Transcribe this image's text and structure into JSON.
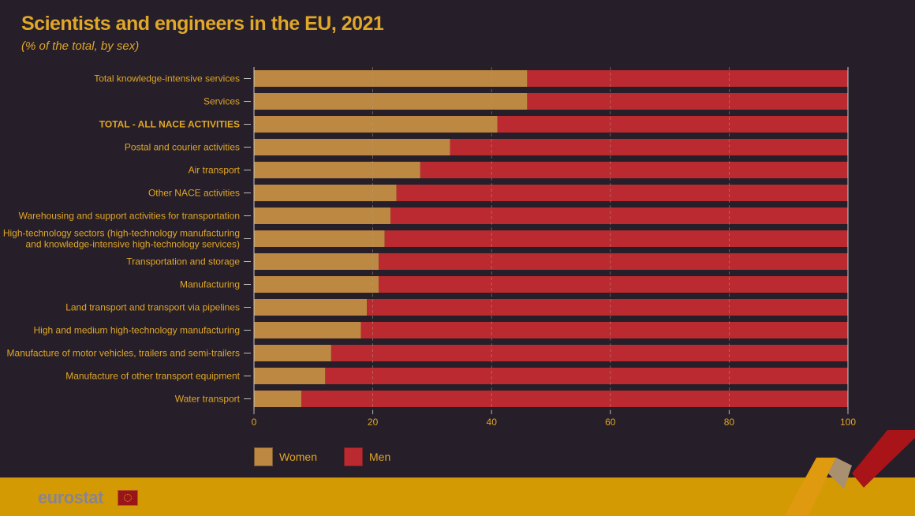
{
  "header": {
    "title": "Scientists and engineers in the EU, 2021",
    "subtitle": "(% of the total, by sex)"
  },
  "colors": {
    "women": "#bd8841",
    "men": "#bb2a30",
    "text": "#e0a728",
    "background": "#261e28",
    "footer": "#d39a04"
  },
  "footer": {
    "logo": "eurostat"
  },
  "chart_data": {
    "type": "bar",
    "orientation": "horizontal",
    "stacked": true,
    "title": "Scientists and engineers in the EU, 2021",
    "subtitle": "(% of the total, by sex)",
    "categories": [
      "Total knowledge-intensive services",
      "Services",
      "TOTAL - ALL NACE ACTIVITIES",
      "Postal and courier activities",
      "Air transport",
      "Other NACE activities",
      "Warehousing and support activities for transportation",
      "High-technology sectors (high-technology manufacturing|and knowledge-intensive high-technology services)",
      "Transportation and storage",
      "Manufacturing",
      "Land transport and transport via pipelines",
      "High and medium high-technology manufacturing",
      "Manufacture of motor vehicles, trailers and semi-trailers",
      "Manufacture of other transport equipment",
      "Water transport"
    ],
    "series": [
      {
        "name": "Women",
        "values": [
          46,
          46,
          41,
          33,
          28,
          24,
          23,
          22,
          21,
          21,
          19,
          18,
          13,
          12,
          8
        ]
      },
      {
        "name": "Men",
        "values": [
          54,
          54,
          59,
          67,
          72,
          76,
          77,
          78,
          79,
          79,
          81,
          82,
          87,
          88,
          92
        ]
      }
    ],
    "xlim": [
      0,
      100
    ],
    "xticks": [
      "0",
      "20",
      "40",
      "60",
      "80",
      "100"
    ],
    "grid": true,
    "legend": "bottom-left",
    "highlighted_category": "TOTAL - ALL NACE ACTIVITIES"
  }
}
